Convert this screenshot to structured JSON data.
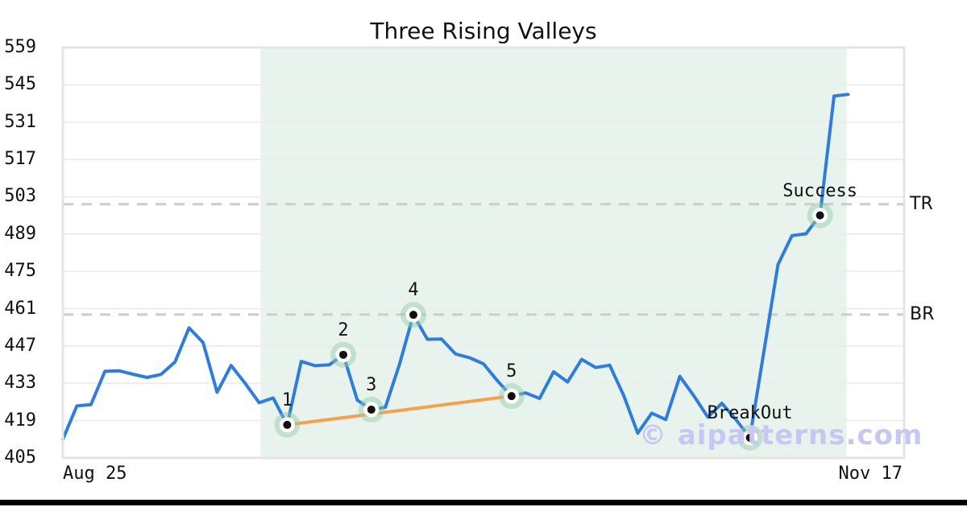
{
  "title": "Three Rising Valleys",
  "watermark": "© aipatterns.com",
  "colors": {
    "price_line": "#2e7cdb",
    "trend_line": "#f5a04c",
    "shade": "#e9f3ee",
    "marker_halo": "rgba(141,203,164,0.45)",
    "marker_ring": "#ffffff",
    "marker_dot": "#111111",
    "gridline": "#ededed",
    "level_dash": "#cccccc",
    "plot_border": "#e4e4e4",
    "text": "#111111",
    "watermark_color": "#c7c7f1"
  },
  "chart_data": {
    "type": "line",
    "title": "Three Rising Valleys",
    "x_tick_labels": [
      "Aug 25",
      "Nov 17"
    ],
    "y_ticks": [
      559,
      545,
      531,
      517,
      503,
      489,
      475,
      461,
      447,
      433,
      419,
      405
    ],
    "ylim": [
      405,
      559
    ],
    "x_index_max": 60,
    "grid": "horizontal",
    "values": [
      412.0,
      424.5,
      425.0,
      437.5,
      437.7,
      436.4,
      435.2,
      436.3,
      441.0,
      453.8,
      448.3,
      429.6,
      439.7,
      433.0,
      425.7,
      427.5,
      417.4,
      441.2,
      439.6,
      439.9,
      443.7,
      426.7,
      423.1,
      424.0,
      440.0,
      458.7,
      449.5,
      449.6,
      444.0,
      442.6,
      440.3,
      433.9,
      428.2,
      429.4,
      427.3,
      437.3,
      433.5,
      442.0,
      438.9,
      439.8,
      428.4,
      414.3,
      421.8,
      419.4,
      435.6,
      428.3,
      420.3,
      425.5,
      419.4,
      412.6,
      445.0,
      477.5,
      488.4,
      489.1,
      496.0,
      540.8,
      541.4
    ],
    "pattern_points": [
      {
        "label": "1",
        "index": 16,
        "value": 417.4
      },
      {
        "label": "2",
        "index": 20,
        "value": 443.7
      },
      {
        "label": "3",
        "index": 22,
        "value": 423.1
      },
      {
        "label": "4",
        "index": 25,
        "value": 458.7
      },
      {
        "label": "5",
        "index": 32,
        "value": 428.2
      },
      {
        "label": "BreakOut",
        "index": 49,
        "value": 412.6
      },
      {
        "label": "Success",
        "index": 54,
        "value": 496.0
      }
    ],
    "levels": [
      {
        "label": "TR",
        "value": 500.2
      },
      {
        "label": "BR",
        "value": 458.8
      }
    ],
    "trendline": {
      "from_index": 16,
      "to_index": 32
    },
    "shaded_region": {
      "from_index": 14.1,
      "to_index": 55.9
    },
    "legend_position": "none"
  }
}
